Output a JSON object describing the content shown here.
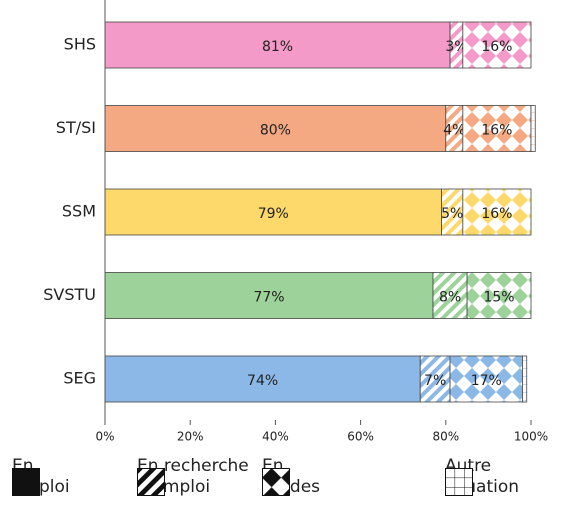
{
  "chart_data": {
    "type": "bar",
    "orientation": "horizontal",
    "stacked": true,
    "categories": [
      "SHS",
      "ST/SI",
      "SSM",
      "SVSTU",
      "SEG"
    ],
    "category_colors": [
      "#f49ac8",
      "#f4a982",
      "#fdd96b",
      "#9dd39a",
      "#8bb8e6"
    ],
    "series": [
      {
        "name": "En emploi",
        "pattern": "solid",
        "values": [
          81,
          80,
          79,
          77,
          74
        ],
        "value_labels": [
          "81%",
          "80%",
          "79%",
          "77%",
          "74%"
        ]
      },
      {
        "name": "En recherche d'emploi",
        "pattern": "stripes",
        "values": [
          3,
          4,
          5,
          8,
          7
        ],
        "value_labels": [
          "3%",
          "4%",
          "5%",
          "8%",
          "7%"
        ]
      },
      {
        "name": "En études",
        "pattern": "diamonds",
        "values": [
          16,
          16,
          16,
          15,
          17
        ],
        "value_labels": [
          "16%",
          "16%",
          "16%",
          "15%",
          "17%"
        ]
      },
      {
        "name": "Autre situation",
        "pattern": "grid",
        "values": [
          0,
          1,
          0,
          0,
          1
        ]
      }
    ],
    "xlim": [
      0,
      100
    ],
    "xticks": [
      {
        "value": 0,
        "label": "0%"
      },
      {
        "value": 20,
        "label": "20%"
      },
      {
        "value": 40,
        "label": "40%"
      },
      {
        "value": 60,
        "label": "60%"
      },
      {
        "value": 80,
        "label": "80%"
      },
      {
        "value": 100,
        "label": "100%"
      }
    ]
  }
}
